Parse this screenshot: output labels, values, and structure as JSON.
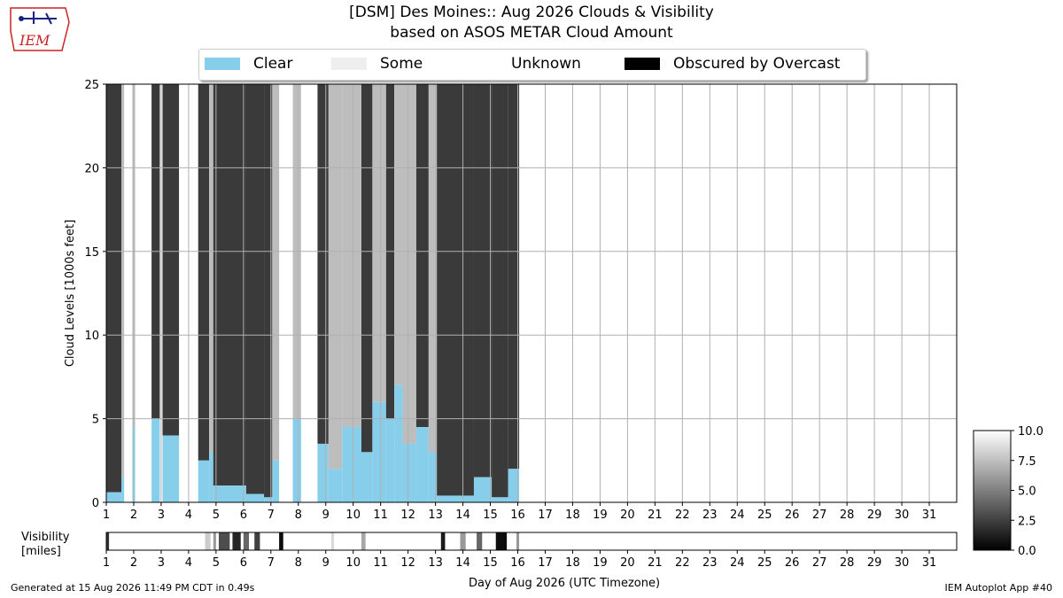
{
  "header": {
    "title": "[DSM] Des Moines:: Aug 2026 Clouds & Visibility",
    "subtitle": "based on ASOS METAR Cloud Amount"
  },
  "logo": {
    "text": "IEM"
  },
  "legend": [
    {
      "label": "Clear",
      "color": "#87ceeb"
    },
    {
      "label": "Some",
      "color": "#eeeeee"
    },
    {
      "label": "Unknown",
      "color": "#ffffff"
    },
    {
      "label": "Obscured by Overcast",
      "color": "#000000"
    }
  ],
  "footer": {
    "generated": "Generated at 15 Aug 2026 11:49 PM CDT in 0.49s",
    "app": "IEM Autoplot App #40"
  },
  "chart_data": [
    {
      "type": "area",
      "ylabel": "Cloud Levels [1000s feet]",
      "xlabel": "Day of Aug 2026 (UTC Timezone)",
      "xlim": [
        1,
        32
      ],
      "ylim": [
        0,
        25
      ],
      "xticks": [
        "1",
        "2",
        "3",
        "4",
        "5",
        "6",
        "7",
        "8",
        "9",
        "10",
        "11",
        "12",
        "13",
        "14",
        "15",
        "16",
        "17",
        "18",
        "19",
        "20",
        "21",
        "22",
        "23",
        "24",
        "25",
        "26",
        "27",
        "28",
        "29",
        "30",
        "31"
      ],
      "yticks": [
        "0",
        "5",
        "10",
        "15",
        "20",
        "25"
      ],
      "grid": true,
      "data_end_day": 16.05,
      "bands": [
        {
          "start": 1.0,
          "end": 1.55,
          "category": "overcast",
          "clear_top": 0.6
        },
        {
          "start": 1.55,
          "end": 1.65,
          "category": "some",
          "clear_top": 1.5
        },
        {
          "start": 1.65,
          "end": 1.95,
          "category": "clear",
          "clear_top": 25
        },
        {
          "start": 1.95,
          "end": 2.05,
          "category": "some",
          "clear_top": 4.5
        },
        {
          "start": 2.05,
          "end": 2.65,
          "category": "clear",
          "clear_top": 25
        },
        {
          "start": 2.65,
          "end": 2.95,
          "category": "overcast",
          "clear_top": 5.0
        },
        {
          "start": 2.95,
          "end": 3.05,
          "category": "clear",
          "clear_top": 25
        },
        {
          "start": 3.05,
          "end": 3.65,
          "category": "overcast",
          "clear_top": 4.0
        },
        {
          "start": 3.65,
          "end": 4.35,
          "category": "clear",
          "clear_top": 25
        },
        {
          "start": 4.35,
          "end": 4.75,
          "category": "overcast",
          "clear_top": 2.5
        },
        {
          "start": 4.75,
          "end": 4.9,
          "category": "some",
          "clear_top": 3.0
        },
        {
          "start": 4.9,
          "end": 6.1,
          "category": "overcast",
          "clear_top": 1.0
        },
        {
          "start": 6.1,
          "end": 6.75,
          "category": "overcast",
          "clear_top": 0.5
        },
        {
          "start": 6.75,
          "end": 7.05,
          "category": "overcast",
          "clear_top": 0.3
        },
        {
          "start": 7.05,
          "end": 7.3,
          "category": "some",
          "clear_top": 2.5
        },
        {
          "start": 7.3,
          "end": 7.8,
          "category": "clear",
          "clear_top": 25
        },
        {
          "start": 7.8,
          "end": 8.1,
          "category": "some",
          "clear_top": 5.0
        },
        {
          "start": 8.1,
          "end": 8.7,
          "category": "clear",
          "clear_top": 25
        },
        {
          "start": 8.7,
          "end": 9.1,
          "category": "overcast",
          "clear_top": 3.5
        },
        {
          "start": 9.1,
          "end": 9.6,
          "category": "some",
          "clear_top": 2.0
        },
        {
          "start": 9.6,
          "end": 10.3,
          "category": "some",
          "clear_top": 4.5
        },
        {
          "start": 10.3,
          "end": 10.7,
          "category": "overcast",
          "clear_top": 3.0
        },
        {
          "start": 10.7,
          "end": 11.2,
          "category": "some",
          "clear_top": 6.0
        },
        {
          "start": 11.2,
          "end": 11.5,
          "category": "overcast",
          "clear_top": 5.0
        },
        {
          "start": 11.5,
          "end": 11.8,
          "category": "some",
          "clear_top": 7.0
        },
        {
          "start": 11.8,
          "end": 12.3,
          "category": "some",
          "clear_top": 3.5
        },
        {
          "start": 12.3,
          "end": 12.75,
          "category": "overcast",
          "clear_top": 4.5
        },
        {
          "start": 12.75,
          "end": 13.05,
          "category": "some",
          "clear_top": 3.0
        },
        {
          "start": 13.05,
          "end": 14.4,
          "category": "overcast",
          "clear_top": 0.4
        },
        {
          "start": 14.4,
          "end": 15.05,
          "category": "overcast",
          "clear_top": 1.5
        },
        {
          "start": 15.05,
          "end": 15.65,
          "category": "overcast",
          "clear_top": 0.3
        },
        {
          "start": 15.65,
          "end": 16.05,
          "category": "overcast",
          "clear_top": 2.0
        }
      ]
    },
    {
      "type": "heatmap",
      "ylabel": "Visibility\n[miles]",
      "xlabel": "Day of Aug 2026 (UTC Timezone)",
      "xlim": [
        1,
        32
      ],
      "colorbar": {
        "min": 0.0,
        "max": 10.0,
        "ticks": [
          "0.0",
          "2.5",
          "5.0",
          "7.5",
          "10.0"
        ]
      },
      "low_visibility": [
        {
          "start": 1.0,
          "end": 1.1,
          "value": 2.0
        },
        {
          "start": 4.6,
          "end": 4.8,
          "value": 8.0
        },
        {
          "start": 4.9,
          "end": 5.0,
          "value": 6.0
        },
        {
          "start": 5.1,
          "end": 5.5,
          "value": 3.0
        },
        {
          "start": 5.6,
          "end": 5.9,
          "value": 1.5
        },
        {
          "start": 6.0,
          "end": 6.2,
          "value": 4.0
        },
        {
          "start": 6.4,
          "end": 6.6,
          "value": 2.5
        },
        {
          "start": 7.3,
          "end": 7.45,
          "value": 0.5
        },
        {
          "start": 9.2,
          "end": 9.3,
          "value": 8.5
        },
        {
          "start": 10.3,
          "end": 10.45,
          "value": 6.5
        },
        {
          "start": 13.2,
          "end": 13.35,
          "value": 1.0
        },
        {
          "start": 13.9,
          "end": 14.1,
          "value": 6.0
        },
        {
          "start": 14.5,
          "end": 14.7,
          "value": 4.0
        },
        {
          "start": 15.2,
          "end": 15.6,
          "value": 0.5
        },
        {
          "start": 15.95,
          "end": 16.05,
          "value": 6.0
        }
      ],
      "data_end_day": 16.05
    }
  ]
}
